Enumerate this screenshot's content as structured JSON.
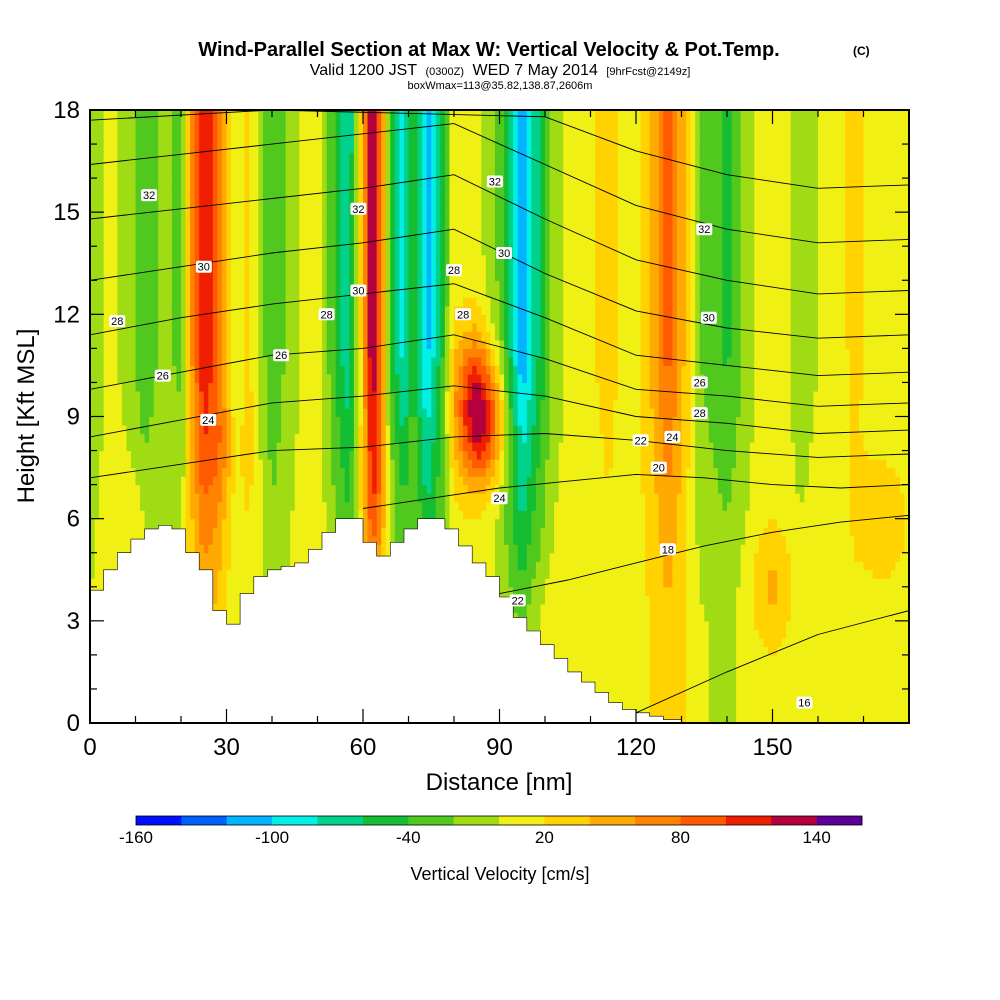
{
  "header": {
    "title_main": "Wind-Parallel Section at Max W: Vertical Velocity & Pot.Temp.",
    "title_mark": "(C)",
    "valid_prefix": "Valid 1200 JST",
    "valid_zulu": "(0300Z)",
    "valid_date": "WED 7 May 2014",
    "forecast": "[9hrFcst@2149z]",
    "box_info": "boxWmax=113@35.82,138.87,2606m"
  },
  "chart_data": {
    "type": "heatmap",
    "xlabel": "Distance [nm]",
    "ylabel": "Height [Kft MSL]",
    "xlim": [
      0,
      180
    ],
    "ylim": [
      0,
      18
    ],
    "x_ticks": [
      0,
      30,
      60,
      90,
      120,
      150
    ],
    "y_ticks": [
      0,
      3,
      6,
      9,
      12,
      15,
      18
    ],
    "colorbar": {
      "label": "Vertical Velocity [cm/s]",
      "tick_values": [
        -160,
        -100,
        -40,
        20,
        80,
        140
      ],
      "bins": [
        -160,
        -140,
        -120,
        -100,
        -80,
        -60,
        -40,
        -20,
        0,
        20,
        40,
        60,
        80,
        100,
        120,
        140,
        160
      ],
      "colors": [
        "#0010ff",
        "#0060ff",
        "#00b4ff",
        "#00f0e6",
        "#00d28c",
        "#14be32",
        "#50c81e",
        "#a0dc14",
        "#f0f014",
        "#ffd200",
        "#ffaa00",
        "#ff8200",
        "#ff5a00",
        "#f01e00",
        "#b4003c",
        "#5a0096"
      ]
    },
    "vertical_velocity_columns": [
      {
        "x": 0,
        "w": -20
      },
      {
        "x": 4,
        "w": 5
      },
      {
        "x": 8,
        "w": -5
      },
      {
        "x": 12,
        "w": -35
      },
      {
        "x": 16,
        "w": -15
      },
      {
        "x": 20,
        "w": -25
      },
      {
        "x": 22,
        "w": 50
      },
      {
        "x": 25,
        "w": 120
      },
      {
        "x": 28,
        "w": 90
      },
      {
        "x": 32,
        "w": -5
      },
      {
        "x": 35,
        "w": 25
      },
      {
        "x": 40,
        "w": -40
      },
      {
        "x": 45,
        "w": -5
      },
      {
        "x": 50,
        "w": 15
      },
      {
        "x": 54,
        "w": -45
      },
      {
        "x": 57,
        "w": -80
      },
      {
        "x": 60,
        "w": 40
      },
      {
        "x": 62,
        "w": 150
      },
      {
        "x": 64,
        "w": 80
      },
      {
        "x": 66,
        "w": -40
      },
      {
        "x": 69,
        "w": -90
      },
      {
        "x": 71,
        "w": -40
      },
      {
        "x": 74,
        "w": -110
      },
      {
        "x": 77,
        "w": -60
      },
      {
        "x": 80,
        "w": 15
      },
      {
        "x": 85,
        "w": 10
      },
      {
        "x": 90,
        "w": -25
      },
      {
        "x": 95,
        "w": -120
      },
      {
        "x": 98,
        "w": -70
      },
      {
        "x": 102,
        "w": -10
      },
      {
        "x": 108,
        "w": 15
      },
      {
        "x": 114,
        "w": 25
      },
      {
        "x": 120,
        "w": 10
      },
      {
        "x": 124,
        "w": 50
      },
      {
        "x": 127,
        "w": 90
      },
      {
        "x": 130,
        "w": 50
      },
      {
        "x": 134,
        "w": -20
      },
      {
        "x": 140,
        "w": -45
      },
      {
        "x": 146,
        "w": 0
      },
      {
        "x": 150,
        "w": 15
      },
      {
        "x": 156,
        "w": -10
      },
      {
        "x": 162,
        "w": 5
      },
      {
        "x": 168,
        "w": 25
      },
      {
        "x": 174,
        "w": 10
      },
      {
        "x": 180,
        "w": 5
      }
    ],
    "lower_features": [
      {
        "x": 86,
        "y": 8.5,
        "w": 90
      },
      {
        "x": 85,
        "y": 10,
        "w": 70
      },
      {
        "x": 10,
        "y": 6,
        "w": 15
      },
      {
        "x": 30,
        "y": 8,
        "w": 20
      },
      {
        "x": 100,
        "y": 3,
        "w": 10
      },
      {
        "x": 150,
        "y": 4,
        "w": 30
      },
      {
        "x": 175,
        "y": 6,
        "w": 25
      },
      {
        "x": 65,
        "y": 7,
        "w": 15
      }
    ],
    "terrain": [
      {
        "x": 0,
        "h": 3.9
      },
      {
        "x": 3,
        "h": 4.5
      },
      {
        "x": 6,
        "h": 5.0
      },
      {
        "x": 9,
        "h": 5.4
      },
      {
        "x": 12,
        "h": 5.7
      },
      {
        "x": 15,
        "h": 5.8
      },
      {
        "x": 18,
        "h": 5.7
      },
      {
        "x": 21,
        "h": 5.0
      },
      {
        "x": 24,
        "h": 4.5
      },
      {
        "x": 27,
        "h": 3.3
      },
      {
        "x": 30,
        "h": 2.9
      },
      {
        "x": 33,
        "h": 3.8
      },
      {
        "x": 36,
        "h": 4.3
      },
      {
        "x": 39,
        "h": 4.5
      },
      {
        "x": 42,
        "h": 4.6
      },
      {
        "x": 45,
        "h": 4.7
      },
      {
        "x": 48,
        "h": 5.1
      },
      {
        "x": 51,
        "h": 5.6
      },
      {
        "x": 54,
        "h": 6.0
      },
      {
        "x": 57,
        "h": 6.0
      },
      {
        "x": 60,
        "h": 5.3
      },
      {
        "x": 63,
        "h": 4.9
      },
      {
        "x": 66,
        "h": 5.3
      },
      {
        "x": 69,
        "h": 5.7
      },
      {
        "x": 72,
        "h": 6.0
      },
      {
        "x": 75,
        "h": 6.0
      },
      {
        "x": 78,
        "h": 5.7
      },
      {
        "x": 81,
        "h": 5.2
      },
      {
        "x": 84,
        "h": 4.7
      },
      {
        "x": 87,
        "h": 4.3
      },
      {
        "x": 90,
        "h": 3.7
      },
      {
        "x": 93,
        "h": 3.1
      },
      {
        "x": 96,
        "h": 2.7
      },
      {
        "x": 99,
        "h": 2.3
      },
      {
        "x": 102,
        "h": 1.9
      },
      {
        "x": 105,
        "h": 1.5
      },
      {
        "x": 108,
        "h": 1.2
      },
      {
        "x": 111,
        "h": 0.9
      },
      {
        "x": 114,
        "h": 0.6
      },
      {
        "x": 117,
        "h": 0.4
      },
      {
        "x": 120,
        "h": 0.3
      },
      {
        "x": 123,
        "h": 0.2
      },
      {
        "x": 126,
        "h": 0.1
      },
      {
        "x": 130,
        "h": 0.0
      },
      {
        "x": 180,
        "h": 0.0
      }
    ],
    "theta_contours": [
      {
        "label": "16",
        "points": [
          [
            120,
            0.3
          ],
          [
            140,
            1.5
          ],
          [
            160,
            2.6
          ],
          [
            180,
            3.3
          ]
        ]
      },
      {
        "label": "18",
        "points": [
          [
            90,
            3.8
          ],
          [
            105,
            4.2
          ],
          [
            120,
            4.7
          ],
          [
            135,
            5.2
          ],
          [
            150,
            5.6
          ],
          [
            165,
            5.9
          ],
          [
            180,
            6.1
          ]
        ]
      },
      {
        "label": "20",
        "points": [
          [
            60,
            6.3
          ],
          [
            75,
            6.6
          ],
          [
            90,
            6.9
          ],
          [
            105,
            7.1
          ],
          [
            120,
            7.3
          ],
          [
            135,
            7.2
          ],
          [
            150,
            7.0
          ],
          [
            165,
            6.9
          ],
          [
            180,
            7.0
          ]
        ]
      },
      {
        "label": "22",
        "points": [
          [
            0,
            7.2
          ],
          [
            20,
            7.6
          ],
          [
            40,
            8.0
          ],
          [
            60,
            8.1
          ],
          [
            80,
            8.4
          ],
          [
            100,
            8.5
          ],
          [
            120,
            8.3
          ],
          [
            140,
            8.0
          ],
          [
            160,
            7.8
          ],
          [
            180,
            7.9
          ]
        ]
      },
      {
        "label": "24",
        "points": [
          [
            0,
            8.4
          ],
          [
            20,
            8.9
          ],
          [
            40,
            9.4
          ],
          [
            60,
            9.6
          ],
          [
            80,
            9.9
          ],
          [
            100,
            9.6
          ],
          [
            120,
            9.0
          ],
          [
            140,
            8.8
          ],
          [
            160,
            8.5
          ],
          [
            180,
            8.6
          ]
        ]
      },
      {
        "label": "26",
        "points": [
          [
            0,
            9.8
          ],
          [
            20,
            10.3
          ],
          [
            40,
            10.8
          ],
          [
            60,
            11.0
          ],
          [
            80,
            11.4
          ],
          [
            100,
            10.7
          ],
          [
            120,
            9.8
          ],
          [
            140,
            9.6
          ],
          [
            160,
            9.3
          ],
          [
            180,
            9.4
          ]
        ]
      },
      {
        "label": "28",
        "points": [
          [
            0,
            11.4
          ],
          [
            20,
            11.9
          ],
          [
            40,
            12.3
          ],
          [
            60,
            12.6
          ],
          [
            80,
            12.9
          ],
          [
            100,
            11.9
          ],
          [
            120,
            10.8
          ],
          [
            140,
            10.5
          ],
          [
            160,
            10.2
          ],
          [
            180,
            10.3
          ]
        ]
      },
      {
        "label": "30",
        "points": [
          [
            0,
            13.0
          ],
          [
            20,
            13.4
          ],
          [
            40,
            13.8
          ],
          [
            60,
            14.1
          ],
          [
            80,
            14.5
          ],
          [
            100,
            13.2
          ],
          [
            120,
            12.1
          ],
          [
            140,
            11.6
          ],
          [
            160,
            11.3
          ],
          [
            180,
            11.4
          ]
        ]
      },
      {
        "label": "32",
        "points": [
          [
            0,
            14.8
          ],
          [
            20,
            15.1
          ],
          [
            40,
            15.4
          ],
          [
            60,
            15.7
          ],
          [
            80,
            16.1
          ],
          [
            100,
            14.8
          ],
          [
            120,
            13.6
          ],
          [
            140,
            13.0
          ],
          [
            160,
            12.6
          ],
          [
            180,
            12.7
          ]
        ]
      },
      {
        "label": "",
        "points": [
          [
            0,
            16.4
          ],
          [
            20,
            16.7
          ],
          [
            40,
            17.0
          ],
          [
            60,
            17.3
          ],
          [
            80,
            17.6
          ],
          [
            100,
            16.4
          ],
          [
            120,
            15.2
          ],
          [
            140,
            14.5
          ],
          [
            160,
            14.1
          ],
          [
            180,
            14.2
          ]
        ]
      },
      {
        "label": "",
        "points": [
          [
            0,
            17.7
          ],
          [
            40,
            18.0
          ],
          [
            100,
            17.8
          ],
          [
            120,
            16.8
          ],
          [
            140,
            16.1
          ],
          [
            160,
            15.7
          ],
          [
            180,
            15.8
          ]
        ]
      }
    ],
    "contour_labels": [
      {
        "text": "32",
        "x": 13,
        "y": 15.5
      },
      {
        "text": "32",
        "x": 59,
        "y": 15.1
      },
      {
        "text": "32",
        "x": 89,
        "y": 15.9
      },
      {
        "text": "32",
        "x": 135,
        "y": 14.5
      },
      {
        "text": "30",
        "x": 25,
        "y": 13.4
      },
      {
        "text": "30",
        "x": 59,
        "y": 12.7
      },
      {
        "text": "30",
        "x": 91,
        "y": 13.8
      },
      {
        "text": "30",
        "x": 136,
        "y": 11.9
      },
      {
        "text": "28",
        "x": 6,
        "y": 11.8
      },
      {
        "text": "28",
        "x": 52,
        "y": 12.0
      },
      {
        "text": "28",
        "x": 80,
        "y": 13.3
      },
      {
        "text": "28",
        "x": 82,
        "y": 12.0
      },
      {
        "text": "28",
        "x": 134,
        "y": 9.1
      },
      {
        "text": "26",
        "x": 16,
        "y": 10.2
      },
      {
        "text": "26",
        "x": 42,
        "y": 10.8
      },
      {
        "text": "26",
        "x": 134,
        "y": 10.0
      },
      {
        "text": "24",
        "x": 26,
        "y": 8.9
      },
      {
        "text": "24",
        "x": 90,
        "y": 6.6
      },
      {
        "text": "24",
        "x": 128,
        "y": 8.4
      },
      {
        "text": "22",
        "x": 121,
        "y": 8.3
      },
      {
        "text": "22",
        "x": 94,
        "y": 3.6
      },
      {
        "text": "20",
        "x": 125,
        "y": 7.5
      },
      {
        "text": "18",
        "x": 127,
        "y": 5.1
      },
      {
        "text": "16",
        "x": 157,
        "y": 0.6
      }
    ]
  }
}
